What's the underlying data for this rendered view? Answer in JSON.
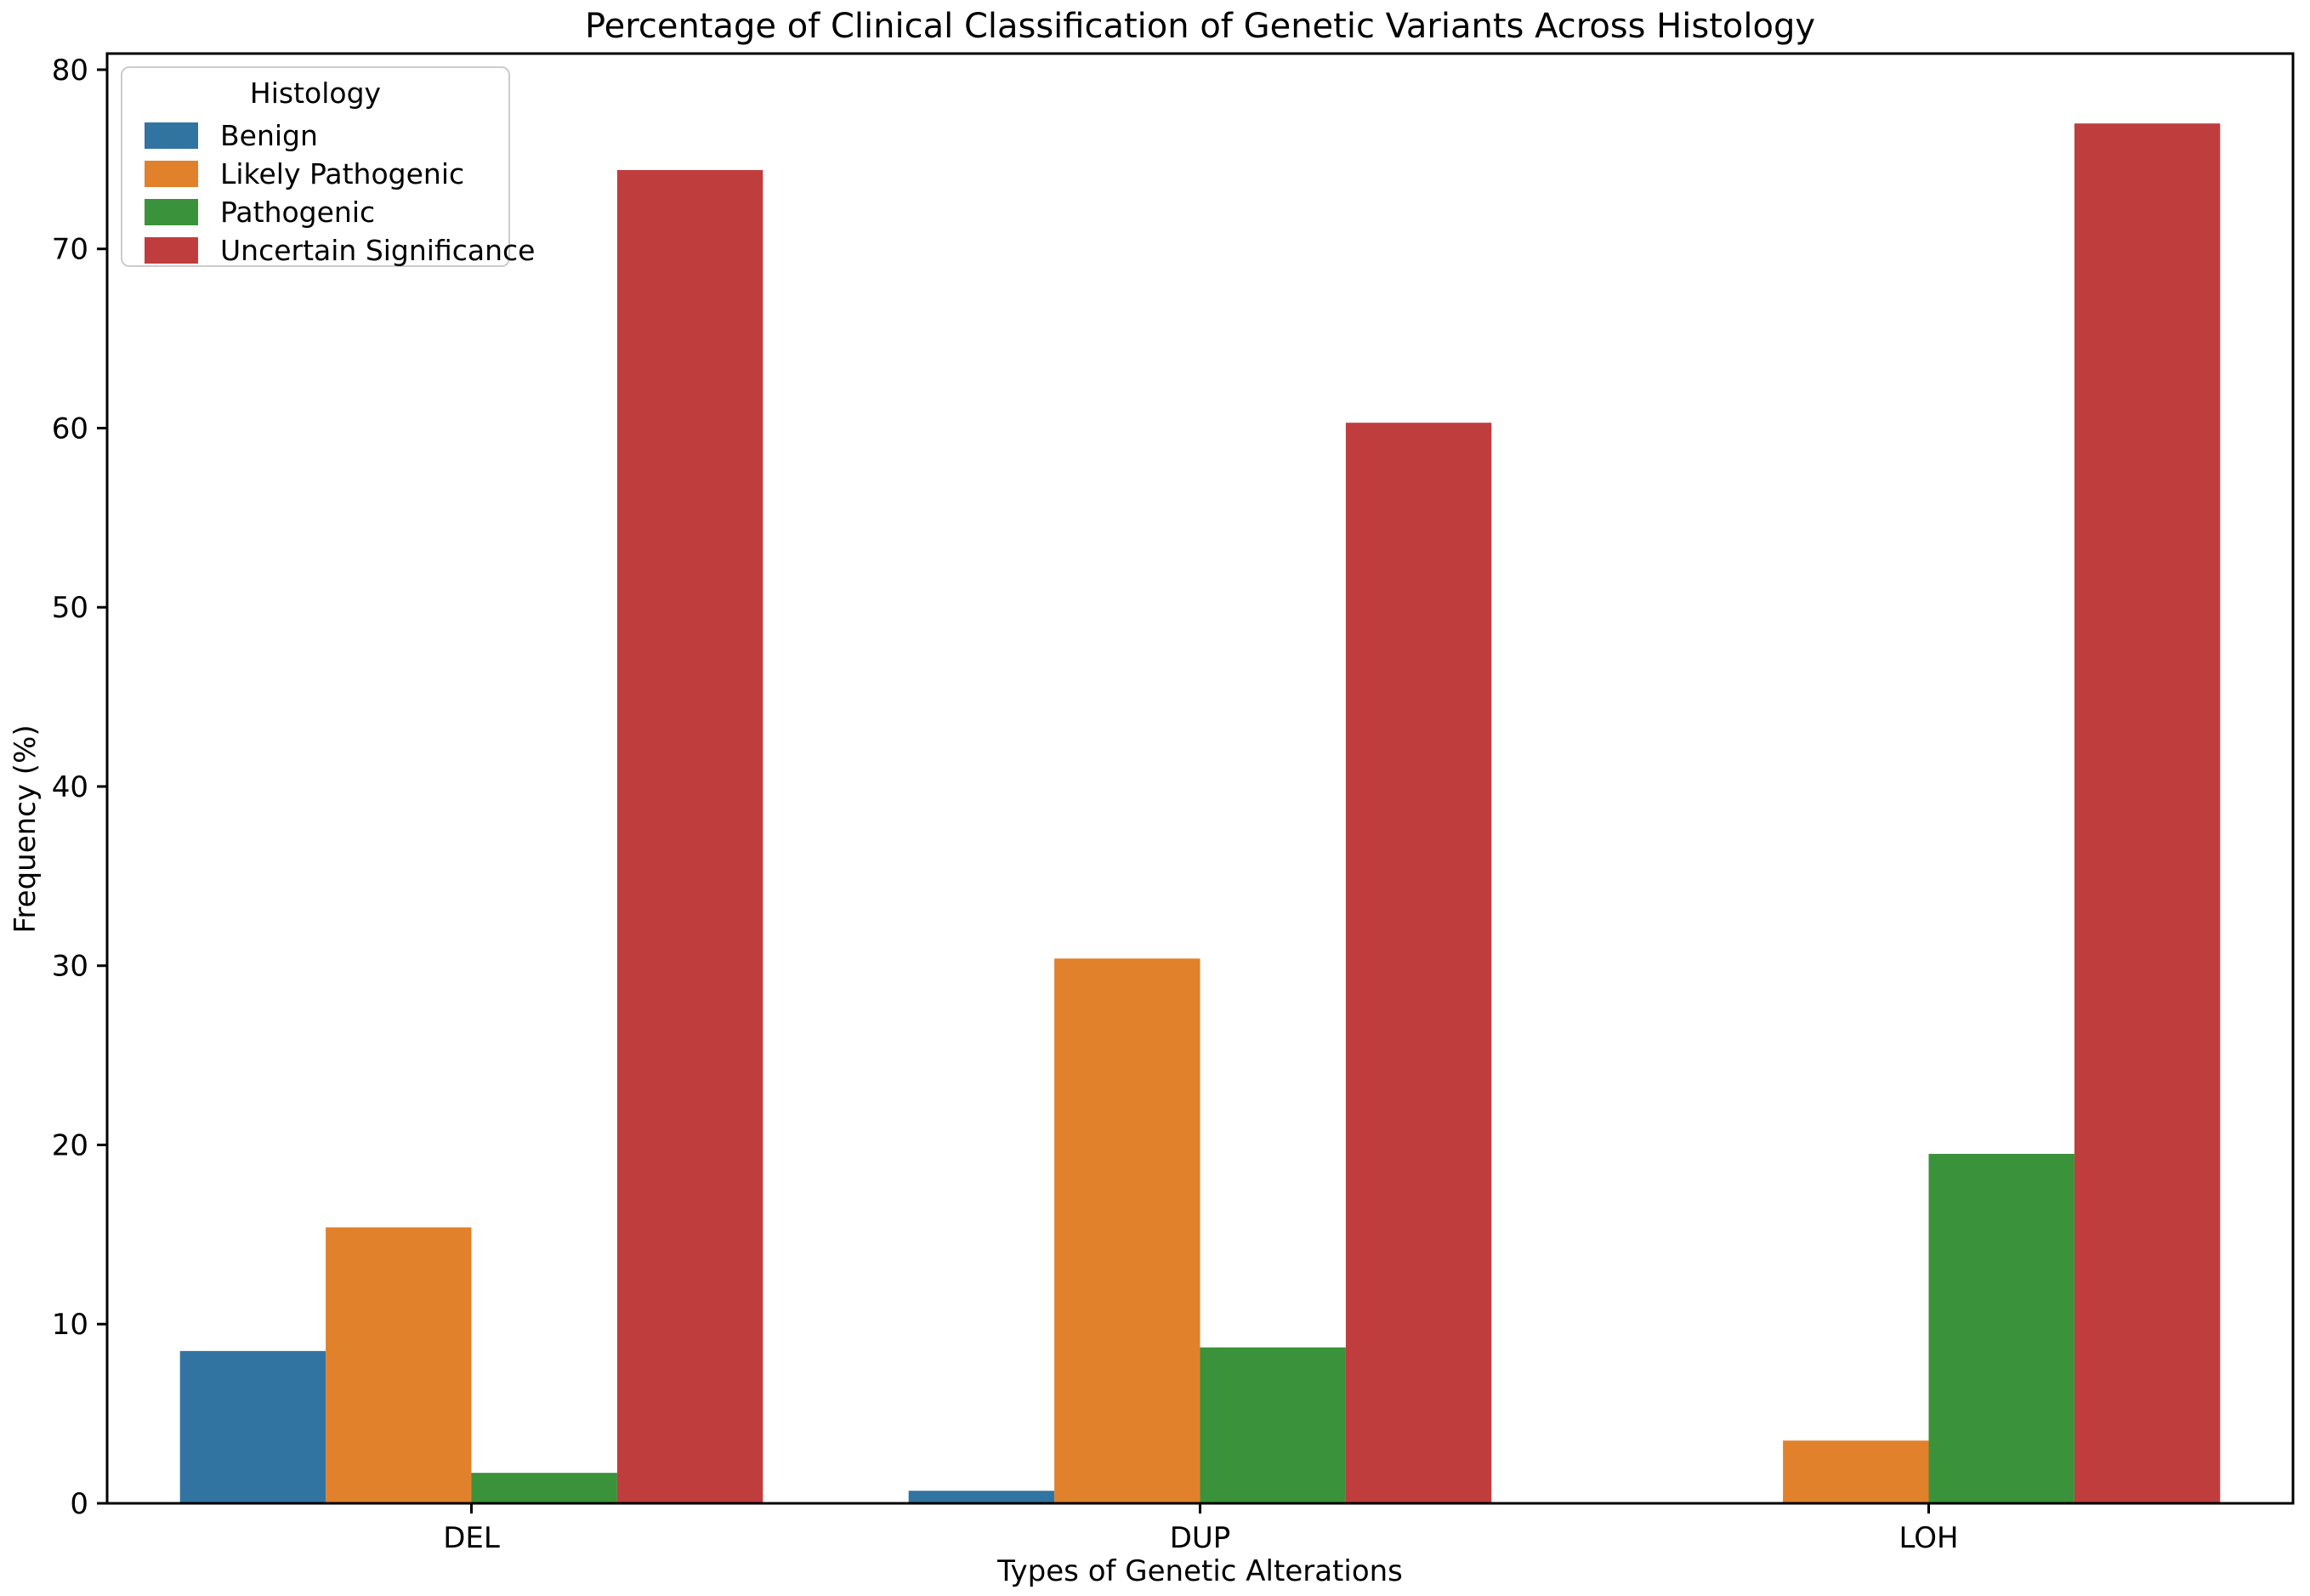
{
  "chart_data": {
    "type": "bar",
    "title": "Percentage of Clinical Classification of Genetic Variants Across Histology",
    "xlabel": "Types of Genetic Alterations",
    "ylabel": "Frequency (%)",
    "categories": [
      "DEL",
      "DUP",
      "LOH"
    ],
    "series": [
      {
        "name": "Benign",
        "color": "#3274a1",
        "values": [
          8.5,
          0.7,
          0.0
        ]
      },
      {
        "name": "Likely Pathogenic",
        "color": "#e1812c",
        "values": [
          15.4,
          30.4,
          3.5
        ]
      },
      {
        "name": "Pathogenic",
        "color": "#3a923a",
        "values": [
          1.7,
          8.7,
          19.5
        ]
      },
      {
        "name": "Uncertain Significance",
        "color": "#c03d3e",
        "values": [
          74.4,
          60.3,
          77.0
        ]
      }
    ],
    "ylim": [
      0,
      80.9
    ],
    "yticks": [
      0,
      10,
      20,
      30,
      40,
      50,
      60,
      70,
      80
    ],
    "legend": {
      "title": "Histology",
      "position": "upper left"
    },
    "grid": false,
    "background": "#ffffff",
    "axis_color": "#000000"
  }
}
